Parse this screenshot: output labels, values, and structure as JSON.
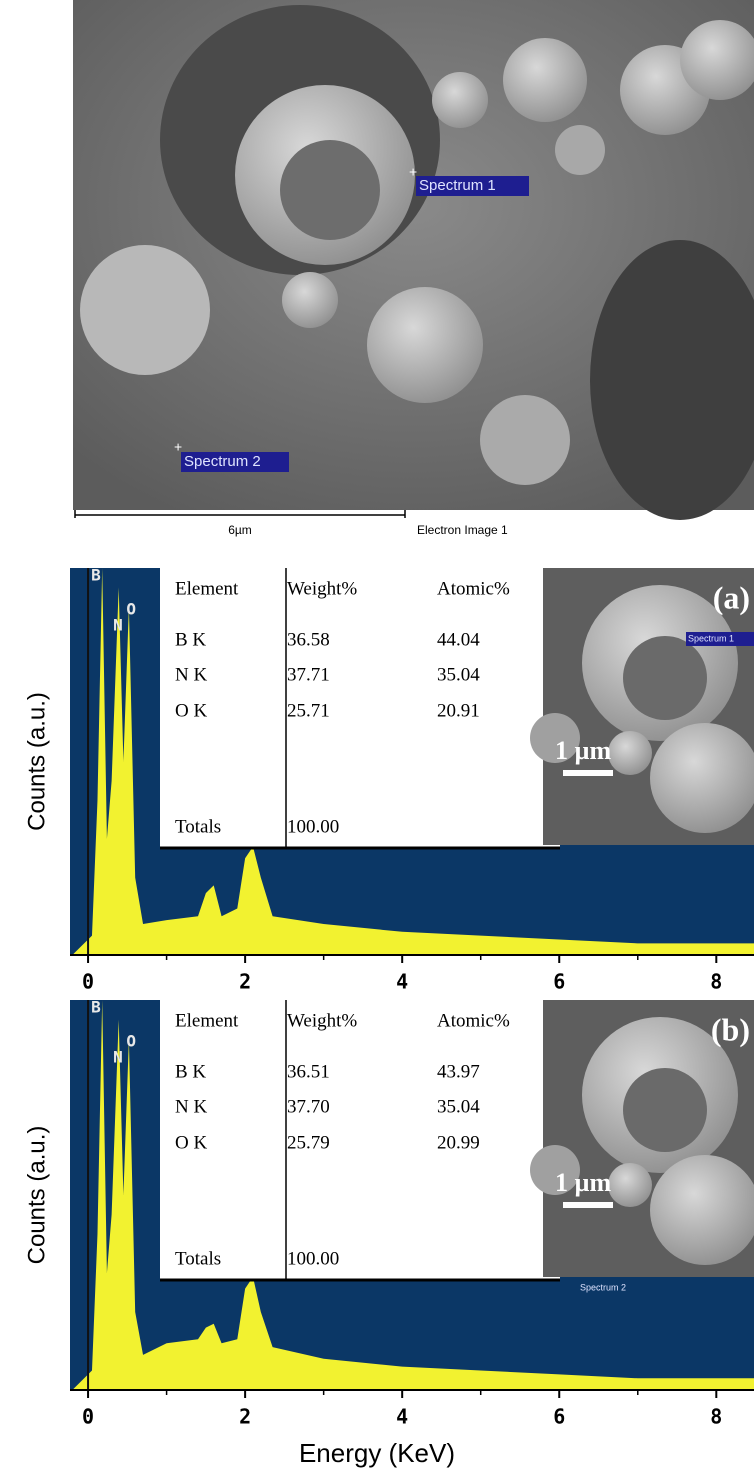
{
  "sem_image": {
    "labels": [
      "Spectrum 1",
      "Spectrum 2"
    ],
    "scale_bar": "6µm",
    "caption": "Electron Image 1"
  },
  "chart_data": [
    {
      "type": "area",
      "color": "#f2f230",
      "background": "#0b3766",
      "ylabel": "Counts (a.u.)",
      "x": [
        -0.2,
        0.05,
        0.12,
        0.18,
        0.24,
        0.3,
        0.39,
        0.45,
        0.52,
        0.6,
        0.7,
        1.0,
        1.4,
        1.5,
        1.6,
        1.7,
        1.9,
        2.0,
        2.1,
        2.2,
        2.35,
        3,
        4,
        5,
        6,
        7,
        8,
        8.5
      ],
      "values": [
        0,
        5,
        40,
        100,
        30,
        45,
        95,
        50,
        90,
        20,
        8,
        9,
        10,
        16,
        18,
        10,
        12,
        25,
        28,
        20,
        10,
        8,
        6,
        5,
        4,
        3,
        3,
        3
      ],
      "xlim": [
        -0.23,
        8.48
      ],
      "ylim": [
        0,
        100
      ],
      "xticks": [
        0,
        2,
        4,
        6,
        8
      ],
      "peak_labels": [
        "B",
        "O",
        "N"
      ],
      "table": {
        "header": [
          "Element",
          "Weight%",
          "Atomic%"
        ],
        "rows": [
          [
            "B K",
            "36.58",
            "44.04"
          ],
          [
            "N K",
            "37.71",
            "35.04"
          ],
          [
            "O K",
            "25.71",
            "20.91"
          ],
          [
            "Totals",
            "100.00"
          ]
        ]
      },
      "inset": {
        "label": "(a)",
        "scale": "1 µm",
        "spectrum": "Spectrum 1"
      }
    },
    {
      "type": "area",
      "color": "#f2f230",
      "background": "#0b3766",
      "ylabel": "Counts (a.u.)",
      "xlabel": "Energy (KeV)",
      "x": [
        -0.2,
        0.05,
        0.12,
        0.18,
        0.24,
        0.3,
        0.39,
        0.45,
        0.52,
        0.6,
        0.7,
        1.0,
        1.4,
        1.5,
        1.6,
        1.7,
        1.9,
        2.0,
        2.1,
        2.2,
        2.35,
        3,
        4,
        5,
        6,
        7,
        8,
        8.5
      ],
      "values": [
        0,
        5,
        40,
        100,
        30,
        45,
        95,
        50,
        90,
        20,
        9,
        12,
        13,
        16,
        17,
        12,
        13,
        26,
        29,
        20,
        11,
        8,
        6,
        5,
        4,
        3,
        3,
        3
      ],
      "xlim": [
        -0.23,
        8.48
      ],
      "ylim": [
        0,
        100
      ],
      "xticks": [
        0,
        2,
        4,
        6,
        8
      ],
      "peak_labels": [
        "B",
        "O",
        "N"
      ],
      "table": {
        "header": [
          "Element",
          "Weight%",
          "Atomic%"
        ],
        "rows": [
          [
            "B K",
            "36.51",
            "43.97"
          ],
          [
            "N K",
            "37.70",
            "35.04"
          ],
          [
            "O K",
            "25.79",
            "20.99"
          ],
          [
            "Totals",
            "100.00"
          ]
        ]
      },
      "inset": {
        "label": "(b)",
        "scale": "1 µm",
        "spectrum": "Spectrum 2"
      }
    }
  ]
}
